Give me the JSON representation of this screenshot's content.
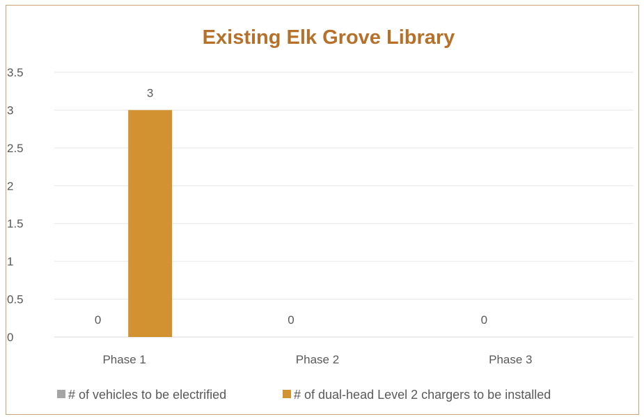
{
  "chart_data": {
    "type": "bar",
    "title": "Existing Elk Grove Library",
    "categories": [
      "Phase 1",
      "Phase 2",
      "Phase 3"
    ],
    "series": [
      {
        "name": "# of vehicles to be electrified",
        "values": [
          0,
          0,
          0
        ],
        "color": "#a5a5a5"
      },
      {
        "name": "# of dual-head Level 2 chargers to be installed",
        "values": [
          3,
          0,
          0
        ],
        "color": "#d39232"
      }
    ],
    "data_labels": [
      {
        "series": 0,
        "category": 0,
        "text": "0"
      },
      {
        "series": 1,
        "category": 0,
        "text": "3"
      },
      {
        "series": 0,
        "category": 1,
        "text": "0"
      },
      {
        "series": 0,
        "category": 2,
        "text": "0"
      }
    ],
    "ylim": [
      0,
      3.5
    ],
    "yticks": [
      "0",
      "0.5",
      "1",
      "1.5",
      "2",
      "2.5",
      "3",
      "3.5"
    ],
    "grid": true,
    "legend_position": "bottom"
  }
}
